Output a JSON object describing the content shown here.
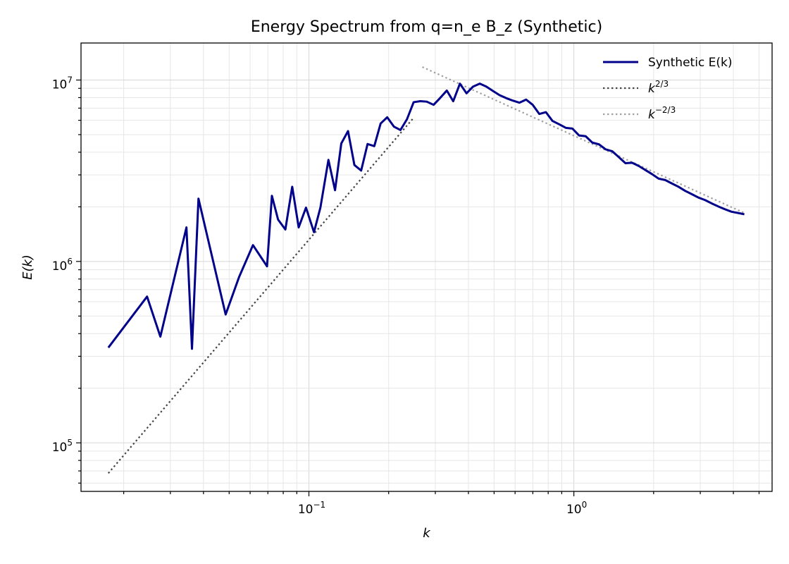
{
  "chart_data": {
    "type": "line",
    "title": "Energy Spectrum from q=n_e B_z (Synthetic)",
    "xlabel": "k",
    "ylabel": "E(k)",
    "xscale": "log",
    "yscale": "log",
    "xlim": [
      0.0138,
      5.6
    ],
    "ylim": [
      54000,
      16000000
    ],
    "grid": true,
    "legend_position": "top-right",
    "x_ticks": [
      {
        "value": 0.1,
        "base": "10",
        "exp": "−1"
      },
      {
        "value": 1,
        "base": "10",
        "exp": "0"
      }
    ],
    "y_ticks": [
      {
        "value": 100000,
        "base": "10",
        "exp": "5"
      },
      {
        "value": 1000000,
        "base": "10",
        "exp": "6"
      },
      {
        "value": 10000000,
        "base": "10",
        "exp": "7"
      }
    ],
    "series": [
      {
        "name": "Synthetic E(k)",
        "color": "#00008b",
        "style": "solid",
        "points": [
          [
            0.0175,
            335000
          ],
          [
            0.0245,
            640000
          ],
          [
            0.0275,
            385000
          ],
          [
            0.0345,
            1540000
          ],
          [
            0.0362,
            330000
          ],
          [
            0.0383,
            2220000
          ],
          [
            0.0485,
            510000
          ],
          [
            0.0545,
            820000
          ],
          [
            0.0615,
            1230000
          ],
          [
            0.0695,
            940000
          ],
          [
            0.0725,
            2300000
          ],
          [
            0.0765,
            1700000
          ],
          [
            0.0815,
            1500000
          ],
          [
            0.0865,
            2580000
          ],
          [
            0.0915,
            1540000
          ],
          [
            0.0975,
            1980000
          ],
          [
            0.1045,
            1450000
          ],
          [
            0.1105,
            1980000
          ],
          [
            0.1185,
            3630000
          ],
          [
            0.1255,
            2470000
          ],
          [
            0.1325,
            4470000
          ],
          [
            0.1405,
            5230000
          ],
          [
            0.1485,
            3400000
          ],
          [
            0.1575,
            3170000
          ],
          [
            0.1665,
            4440000
          ],
          [
            0.1765,
            4320000
          ],
          [
            0.1865,
            5760000
          ],
          [
            0.1975,
            6230000
          ],
          [
            0.2095,
            5530000
          ],
          [
            0.2215,
            5300000
          ],
          [
            0.2345,
            6080000
          ],
          [
            0.2485,
            7550000
          ],
          [
            0.2635,
            7650000
          ],
          [
            0.2785,
            7600000
          ],
          [
            0.2955,
            7300000
          ],
          [
            0.3125,
            7950000
          ],
          [
            0.3315,
            8750000
          ],
          [
            0.3505,
            7640000
          ],
          [
            0.3715,
            9550000
          ],
          [
            0.3935,
            8450000
          ],
          [
            0.4165,
            9200000
          ],
          [
            0.4415,
            9550000
          ],
          [
            0.4675,
            9200000
          ],
          [
            0.4955,
            8700000
          ],
          [
            0.5245,
            8250000
          ],
          [
            0.5555,
            7950000
          ],
          [
            0.5885,
            7700000
          ],
          [
            0.6235,
            7500000
          ],
          [
            0.6605,
            7800000
          ],
          [
            0.6995,
            7300000
          ],
          [
            0.7405,
            6500000
          ],
          [
            0.7845,
            6650000
          ],
          [
            0.8305,
            5950000
          ],
          [
            0.8805,
            5700000
          ],
          [
            0.9325,
            5450000
          ],
          [
            0.9875,
            5400000
          ],
          [
            1.046,
            4950000
          ],
          [
            1.108,
            4900000
          ],
          [
            1.174,
            4520000
          ],
          [
            1.244,
            4420000
          ],
          [
            1.318,
            4150000
          ],
          [
            1.396,
            4050000
          ],
          [
            1.478,
            3760000
          ],
          [
            1.566,
            3480000
          ],
          [
            1.659,
            3500000
          ],
          [
            1.757,
            3360000
          ],
          [
            1.862,
            3190000
          ],
          [
            1.972,
            3030000
          ],
          [
            2.089,
            2860000
          ],
          [
            2.213,
            2810000
          ],
          [
            2.344,
            2690000
          ],
          [
            2.483,
            2580000
          ],
          [
            2.63,
            2450000
          ],
          [
            2.786,
            2350000
          ],
          [
            2.951,
            2250000
          ],
          [
            3.126,
            2180000
          ],
          [
            3.311,
            2090000
          ],
          [
            3.508,
            2010000
          ],
          [
            3.715,
            1940000
          ],
          [
            3.936,
            1880000
          ],
          [
            4.169,
            1850000
          ],
          [
            4.4,
            1820000
          ]
        ]
      },
      {
        "name": "k^{2/3}",
        "legend_base": "k",
        "legend_exp": "2/3",
        "color": "#444444",
        "style": "dotted",
        "points": [
          [
            0.0175,
            68000
          ],
          [
            0.2475,
            6150000
          ]
        ]
      },
      {
        "name": "k^{-2/3}",
        "legend_base": "k",
        "legend_exp": "−2/3",
        "color": "#a0a0a0",
        "style": "dotted",
        "points": [
          [
            0.268,
            11800000
          ],
          [
            4.4,
            1850000
          ]
        ]
      }
    ]
  }
}
